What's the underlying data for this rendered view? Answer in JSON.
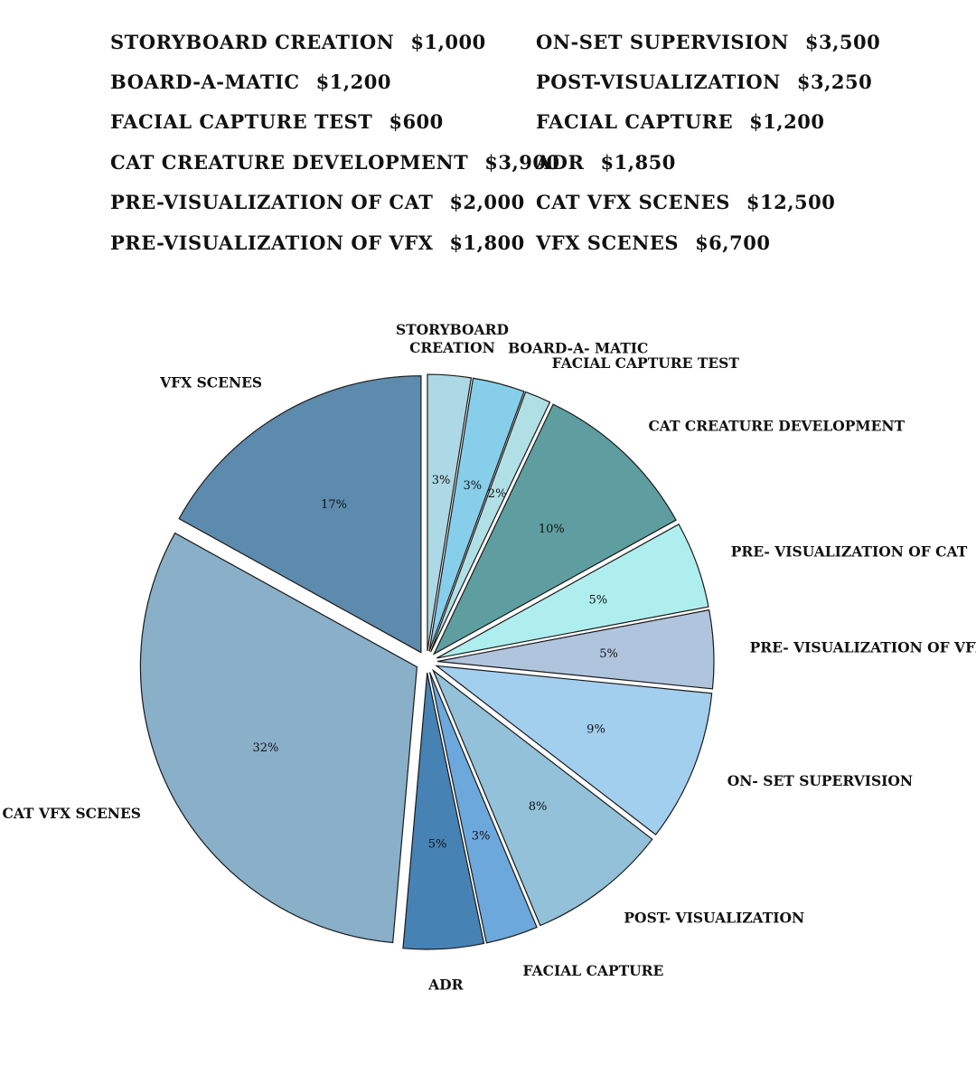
{
  "price_list": {
    "left": [
      {
        "item": "STORYBOARD CREATION",
        "amount": "$1,000"
      },
      {
        "item": "BOARD-A-MATIC",
        "amount": "$1,200"
      },
      {
        "item": "FACIAL CAPTURE TEST",
        "amount": "$600"
      },
      {
        "item": "CAT CREATURE DEVELOPMENT",
        "amount": "$3,900"
      },
      {
        "item": "PRE-VISUALIZATION OF CAT",
        "amount": "$2,000"
      },
      {
        "item": "PRE-VISUALIZATION OF VFX",
        "amount": "$1,800"
      }
    ],
    "right": [
      {
        "item": "ON-SET SUPERVISION",
        "amount": "$3,500"
      },
      {
        "item": "POST-VISUALIZATION",
        "amount": "$3,250"
      },
      {
        "item": "FACIAL CAPTURE",
        "amount": "$1,200"
      },
      {
        "item": "ADR",
        "amount": "$1,850"
      },
      {
        "item": "CAT VFX SCENES",
        "amount": "$12,500"
      },
      {
        "item": "VFX SCENES",
        "amount": "$6,700"
      }
    ]
  },
  "chart_data": {
    "type": "pie",
    "title": "",
    "start": "12 o'clock, clockwise, all slices exploded",
    "slices": [
      {
        "label": "STORYBOARD CREATION",
        "lines": [
          "STORYBOARD",
          "CREATION"
        ],
        "value": 1000,
        "pct_label": "3%",
        "color": "#ADD8E6"
      },
      {
        "label": "BOARD-A- MATIC",
        "lines": [
          "BOARD-A- MATIC"
        ],
        "value": 1200,
        "pct_label": "3%",
        "color": "#87CEEB"
      },
      {
        "label": "FACIAL CAPTURE TEST",
        "lines": [
          "FACIAL CAPTURE TEST"
        ],
        "value": 600,
        "pct_label": "2%",
        "color": "#B0E0E6"
      },
      {
        "label": "CAT CREATURE DEVELOPMENT",
        "lines": [
          "CAT CREATURE DEVELOPMENT"
        ],
        "value": 3900,
        "pct_label": "10%",
        "color": "#5F9EA0"
      },
      {
        "label": "PRE- VISUALIZATION OF CAT",
        "lines": [
          "PRE- VISUALIZATION OF CAT"
        ],
        "value": 2000,
        "pct_label": "5%",
        "color": "#AFEEEE"
      },
      {
        "label": "PRE- VISUALIZATION OF VFX",
        "lines": [
          "PRE- VISUALIZATION OF VFX"
        ],
        "value": 1800,
        "pct_label": "5%",
        "color": "#B0C4DE"
      },
      {
        "label": "ON- SET SUPERVISION",
        "lines": [
          "ON- SET SUPERVISION"
        ],
        "value": 3500,
        "pct_label": "9%",
        "color": "#A3CFEF"
      },
      {
        "label": "POST- VISUALIZATION",
        "lines": [
          "POST- VISUALIZATION"
        ],
        "value": 3250,
        "pct_label": "8%",
        "color": "#92C1D9"
      },
      {
        "label": "FACIAL CAPTURE",
        "lines": [
          "FACIAL CAPTURE"
        ],
        "value": 1200,
        "pct_label": "3%",
        "color": "#6CA8DC"
      },
      {
        "label": "ADR",
        "lines": [
          "ADR"
        ],
        "value": 1850,
        "pct_label": "5%",
        "color": "#4682B4"
      },
      {
        "label": "CAT VFX SCENES",
        "lines": [
          "CAT VFX SCENES"
        ],
        "value": 12500,
        "pct_label": "32%",
        "color": "#89AFC9"
      },
      {
        "label": "VFX SCENES",
        "lines": [
          "VFX SCENES"
        ],
        "value": 6700,
        "pct_label": "17%",
        "color": "#5D8BAD"
      }
    ]
  }
}
